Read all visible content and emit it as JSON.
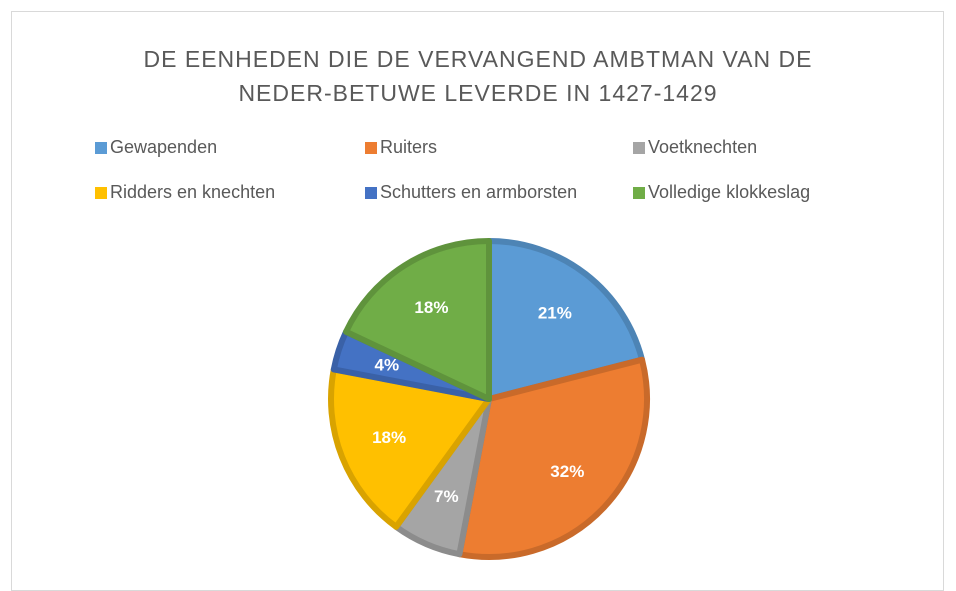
{
  "chart_data": {
    "type": "pie",
    "title": "DE EENHEDEN DIE DE VERVANGEND AMBTMAN VAN DE NEDER-BETUWE LEVERDE IN 1427-1429",
    "categories": [
      "Gewapenden",
      "Ruiters",
      "Voetknechten",
      "Ridders en knechten",
      "Schutters en armborsten",
      "Volledige klokkeslag"
    ],
    "values": [
      21,
      32,
      7,
      18,
      4,
      18
    ],
    "value_labels": [
      "21%",
      "32%",
      "7%",
      "18%",
      "4%",
      "18%"
    ],
    "colors": [
      "#5b9bd5",
      "#ed7d31",
      "#a5a5a5",
      "#ffc000",
      "#4472c4",
      "#70ad47"
    ],
    "legend": "top"
  }
}
